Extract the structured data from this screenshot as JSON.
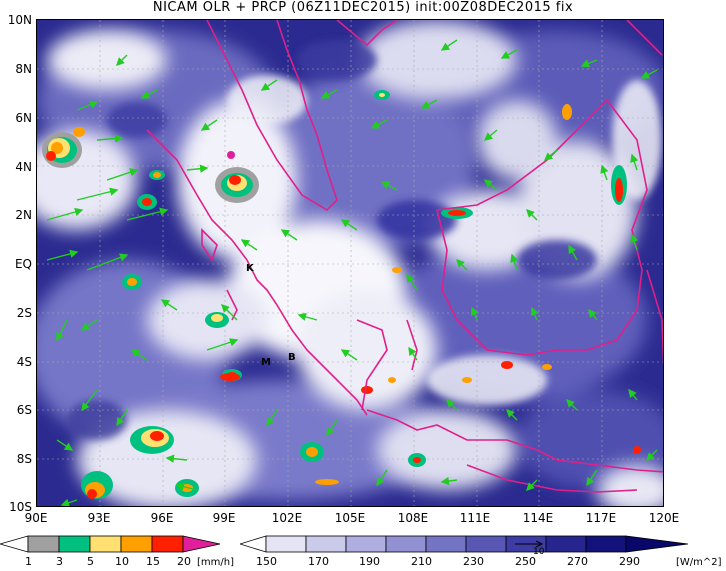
{
  "title": "NICAM OLR + PRCP (06Z11DEC2015) init:00Z08DEC2015 fix",
  "lat_labels": [
    "10N",
    "8N",
    "6N",
    "4N",
    "2N",
    "EQ",
    "2S",
    "4S",
    "6S",
    "8S",
    "10S"
  ],
  "lon_labels": [
    "90E",
    "93E",
    "96E",
    "99E",
    "102E",
    "105E",
    "108E",
    "111E",
    "114E",
    "117E",
    "120E"
  ],
  "city_labels": [
    "K",
    "M",
    "B"
  ],
  "precip_colorbar": {
    "ticks": [
      "1",
      "3",
      "5",
      "10",
      "15",
      "20"
    ],
    "unit": "[mm/h]",
    "colors": [
      "#a0a0a0",
      "#00c080",
      "#ffe070",
      "#ffa000",
      "#ff2000",
      "#e0209a"
    ]
  },
  "olr_colorbar": {
    "ticks": [
      "150",
      "170",
      "190",
      "210",
      "230",
      "250",
      "270",
      "290"
    ],
    "unit": "[W/m^2]",
    "vector_ref": "10",
    "colors": [
      "#ffffff",
      "#e4e4f4",
      "#cacaea",
      "#aeaee0",
      "#9090d2",
      "#7474c4",
      "#5858b4",
      "#3c3ca4",
      "#26268e",
      "#12127a",
      "#08086a"
    ]
  },
  "colors": {
    "ocean_clear": "#23238c",
    "cloud": "#f4f4fa",
    "coastline": "#e0208a",
    "wind_vectors": "#22cc22"
  }
}
